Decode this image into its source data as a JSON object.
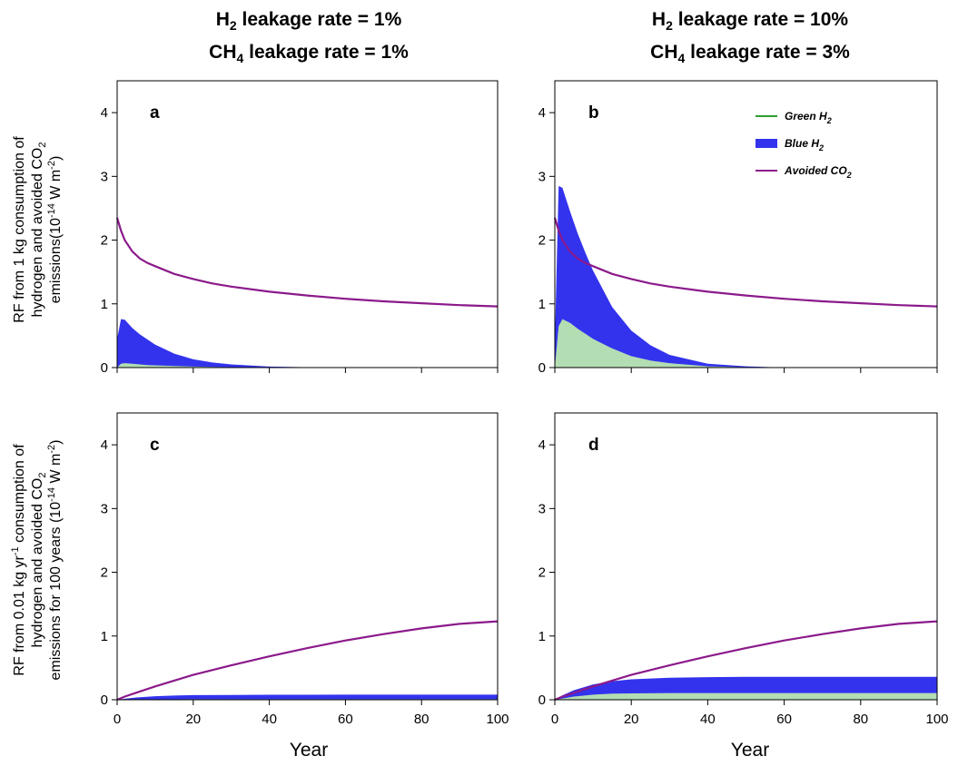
{
  "column_titles": [
    {
      "h2_prefix": "H",
      "h2_sub": "2",
      "h2_rest": " leakage rate = 1%",
      "ch4_prefix": "CH",
      "ch4_sub": "4",
      "ch4_rest": " leakage rate = 1%"
    },
    {
      "h2_prefix": "H",
      "h2_sub": "2",
      "h2_rest": " leakage rate = 10%",
      "ch4_prefix": "CH",
      "ch4_sub": "4",
      "ch4_rest": " leakage rate = 3%"
    }
  ],
  "row_ylabels": [
    {
      "line1": "RF from 1 kg consumption of",
      "line2_pre": "hydrogen and avoided CO",
      "line2_sub": "2",
      "line3_pre": "emissions(10",
      "line3_sup1": "-14",
      "line3_mid": " W m",
      "line3_sup2": "-2",
      "line3_post": ")"
    },
    {
      "line1_pre": "RF from 0.01 kg yr",
      "line1_sup": "-1",
      "line1_post": " consumption of",
      "line2_pre": "hydrogen and avoided CO",
      "line2_sub": "2",
      "line3_pre": "emissions for 100 years (10",
      "line3_sup1": "-14",
      "line3_mid": " W m",
      "line3_sup2": "-2",
      "line3_post": ")"
    }
  ],
  "x_axis_label": "Year",
  "legend": [
    {
      "text_pre": "Green H",
      "text_sub": "2",
      "color": "#2e9e2e",
      "kind": "line"
    },
    {
      "text_pre": "Blue H",
      "text_sub": "2",
      "color": "#3333ee",
      "kind": "patch"
    },
    {
      "text_pre": "Avoided CO",
      "text_sub": "2",
      "color": "#8b1a8b",
      "kind": "line"
    }
  ],
  "colors": {
    "blue_fill": "#3333ee",
    "green_fill": "#b3ddb3",
    "avoided_line": "#8b1a8b"
  },
  "chart_data": [
    {
      "type": "area",
      "panel": "a",
      "xlim": [
        0,
        100
      ],
      "ylim": [
        0,
        4.5
      ],
      "xticks": [
        0,
        20,
        40,
        60,
        80,
        100
      ],
      "yticks": [
        0,
        1,
        2,
        3,
        4
      ],
      "x": [
        0,
        1,
        2,
        4,
        6,
        8,
        10,
        15,
        20,
        25,
        30,
        40,
        50,
        60,
        70,
        80,
        90,
        100
      ],
      "series": [
        {
          "name": "Green H2",
          "values": [
            0,
            0.06,
            0.07,
            0.06,
            0.05,
            0.04,
            0.035,
            0.025,
            0.015,
            0.01,
            0.007,
            0.003,
            0.001,
            0,
            0,
            0,
            0,
            0
          ]
        },
        {
          "name": "Blue H2",
          "values": [
            0.45,
            0.76,
            0.75,
            0.62,
            0.52,
            0.44,
            0.36,
            0.22,
            0.13,
            0.08,
            0.05,
            0.015,
            0.005,
            0,
            0,
            0,
            0,
            0
          ]
        },
        {
          "name": "Avoided CO2",
          "values": [
            2.35,
            2.15,
            2.0,
            1.82,
            1.71,
            1.64,
            1.59,
            1.47,
            1.39,
            1.32,
            1.27,
            1.19,
            1.13,
            1.08,
            1.04,
            1.01,
            0.98,
            0.96
          ]
        }
      ]
    },
    {
      "type": "area",
      "panel": "b",
      "xlim": [
        0,
        100
      ],
      "ylim": [
        0,
        4.5
      ],
      "xticks": [
        0,
        20,
        40,
        60,
        80,
        100
      ],
      "yticks": [
        0,
        1,
        2,
        3,
        4
      ],
      "x": [
        0,
        1,
        2,
        4,
        6,
        8,
        10,
        15,
        20,
        25,
        30,
        40,
        50,
        60,
        70,
        80,
        90,
        100
      ],
      "series": [
        {
          "name": "Green H2",
          "values": [
            0,
            0.65,
            0.76,
            0.7,
            0.61,
            0.53,
            0.45,
            0.3,
            0.18,
            0.11,
            0.07,
            0.02,
            0.005,
            0,
            0,
            0,
            0,
            0
          ]
        },
        {
          "name": "Blue H2",
          "values": [
            0.4,
            2.85,
            2.82,
            2.45,
            2.1,
            1.8,
            1.52,
            0.95,
            0.58,
            0.35,
            0.2,
            0.06,
            0.02,
            0,
            0,
            0,
            0,
            0
          ]
        },
        {
          "name": "Avoided CO2",
          "values": [
            2.35,
            2.15,
            2.0,
            1.82,
            1.71,
            1.64,
            1.59,
            1.47,
            1.39,
            1.32,
            1.27,
            1.19,
            1.13,
            1.08,
            1.04,
            1.01,
            0.98,
            0.96
          ]
        }
      ]
    },
    {
      "type": "area",
      "panel": "c",
      "xlim": [
        0,
        100
      ],
      "ylim": [
        0,
        4.5
      ],
      "xticks": [
        0,
        20,
        40,
        60,
        80,
        100
      ],
      "yticks": [
        0,
        1,
        2,
        3,
        4
      ],
      "x": [
        0,
        2,
        5,
        10,
        15,
        20,
        30,
        40,
        50,
        60,
        70,
        80,
        90,
        100
      ],
      "series": [
        {
          "name": "Green H2",
          "values": [
            0,
            0.002,
            0.004,
            0.006,
            0.007,
            0.008,
            0.008,
            0.008,
            0.008,
            0.008,
            0.008,
            0.008,
            0.008,
            0.008
          ]
        },
        {
          "name": "Blue H2",
          "values": [
            0,
            0.015,
            0.035,
            0.055,
            0.065,
            0.072,
            0.076,
            0.078,
            0.079,
            0.08,
            0.08,
            0.08,
            0.08,
            0.08
          ]
        },
        {
          "name": "Avoided CO2",
          "values": [
            0,
            0.05,
            0.11,
            0.21,
            0.3,
            0.39,
            0.54,
            0.68,
            0.81,
            0.93,
            1.03,
            1.12,
            1.19,
            1.23
          ]
        }
      ]
    },
    {
      "type": "area",
      "panel": "d",
      "xlim": [
        0,
        100
      ],
      "ylim": [
        0,
        4.5
      ],
      "xticks": [
        0,
        20,
        40,
        60,
        80,
        100
      ],
      "yticks": [
        0,
        1,
        2,
        3,
        4
      ],
      "x": [
        0,
        2,
        5,
        10,
        15,
        20,
        30,
        40,
        50,
        60,
        70,
        80,
        90,
        100
      ],
      "series": [
        {
          "name": "Green H2",
          "values": [
            0,
            0.02,
            0.05,
            0.08,
            0.095,
            0.1,
            0.105,
            0.105,
            0.105,
            0.105,
            0.105,
            0.105,
            0.105,
            0.105
          ]
        },
        {
          "name": "Blue H2",
          "values": [
            0,
            0.07,
            0.15,
            0.24,
            0.29,
            0.32,
            0.345,
            0.355,
            0.36,
            0.36,
            0.36,
            0.36,
            0.36,
            0.36
          ]
        },
        {
          "name": "Avoided CO2",
          "values": [
            0,
            0.05,
            0.11,
            0.21,
            0.3,
            0.39,
            0.54,
            0.68,
            0.81,
            0.93,
            1.03,
            1.12,
            1.19,
            1.23
          ]
        }
      ]
    }
  ]
}
